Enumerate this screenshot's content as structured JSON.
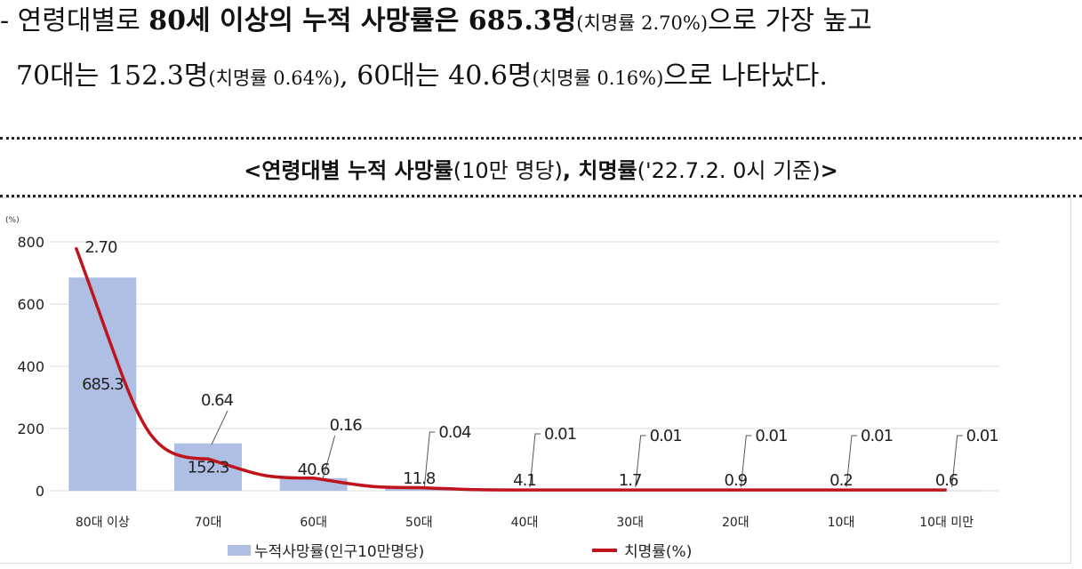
{
  "paragraph": {
    "line1": [
      {
        "text": "- 연령대별로 ",
        "bold": false,
        "small": false
      },
      {
        "text": "80세 이상의 누적 사망률은 685.3명",
        "bold": true,
        "small": false
      },
      {
        "text": "(치명률 2.70%)",
        "bold": false,
        "small": true
      },
      {
        "text": "으로 가장 높고",
        "bold": false,
        "small": false
      }
    ],
    "line2": [
      {
        "text": "70대는 152.3명",
        "bold": false,
        "small": false
      },
      {
        "text": "(치명률 0.64%)",
        "bold": false,
        "small": true
      },
      {
        "text": ", 60대는 40.6명",
        "bold": false,
        "small": false
      },
      {
        "text": "(치명률 0.16%)",
        "bold": false,
        "small": true
      },
      {
        "text": "으로 나타났다.",
        "bold": false,
        "small": false
      }
    ]
  },
  "chart_data": {
    "type": "bar",
    "title_bold1": "<연령대별 누적 사망률",
    "title_normal1": "(10만 명당)",
    "title_bold2": ", 치명률",
    "title_normal2": "('22.7.2. 0시 기준)",
    "title_bold3": ">",
    "ylabel": "(%)",
    "ylim": [
      0,
      800
    ],
    "yticks": [
      "0",
      "200",
      "400",
      "600",
      "800"
    ],
    "categories": [
      "80대 이상",
      "70대",
      "60대",
      "50대",
      "40대",
      "30대",
      "20대",
      "10대",
      "10대 미만"
    ],
    "series": [
      {
        "name": "누적사망률(인구10만명당)",
        "kind": "bar",
        "color": "#aebfe3",
        "values": [
          685.3,
          152.3,
          40.6,
          11.8,
          4.1,
          1.7,
          0.9,
          0.2,
          0.6
        ],
        "labels": [
          "685.3",
          "152.3",
          "40.6",
          "11.8",
          "4.1",
          "1.7",
          "0.9",
          "0.2",
          "0.6"
        ]
      },
      {
        "name": "치명률(%)",
        "kind": "line",
        "color": "#c0141c",
        "values": [
          2.7,
          0.64,
          0.16,
          0.04,
          0.01,
          0.01,
          0.01,
          0.01,
          0.01
        ],
        "labels": [
          "2.70",
          "0.64",
          "0.16",
          "0.04",
          "0.01",
          "0.01",
          "0.01",
          "0.01",
          "0.01"
        ]
      }
    ],
    "grid": true,
    "legend_position": "bottom"
  }
}
